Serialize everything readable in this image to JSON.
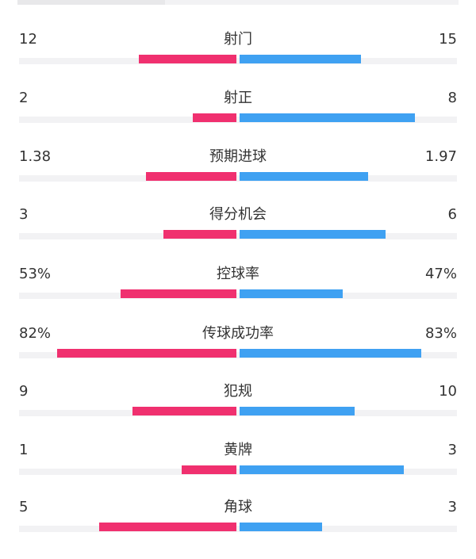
{
  "colors": {
    "home_bar": "#f0306f",
    "away_bar": "#3fa1f2",
    "track": "#f2f2f4",
    "text": "#333333"
  },
  "stats": [
    {
      "label": "射门",
      "home": "12",
      "away": "15",
      "home_share": 0.445,
      "away_share": 0.555
    },
    {
      "label": "射正",
      "home": "2",
      "away": "8",
      "home_share": 0.2,
      "away_share": 0.8
    },
    {
      "label": "预期进球",
      "home": "1.38",
      "away": "1.97",
      "home_share": 0.412,
      "away_share": 0.588
    },
    {
      "label": "得分机会",
      "home": "3",
      "away": "6",
      "home_share": 0.333,
      "away_share": 0.667
    },
    {
      "label": "控球率",
      "home": "53%",
      "away": "47%",
      "home_share": 0.53,
      "away_share": 0.47
    },
    {
      "label": "传球成功率",
      "home": "82%",
      "away": "83%",
      "home_share": 0.82,
      "away_share": 0.83
    },
    {
      "label": "犯规",
      "home": "9",
      "away": "10",
      "home_share": 0.474,
      "away_share": 0.526
    },
    {
      "label": "黄牌",
      "home": "1",
      "away": "3",
      "home_share": 0.25,
      "away_share": 0.75
    },
    {
      "label": "角球",
      "home": "5",
      "away": "3",
      "home_share": 0.625,
      "away_share": 0.375
    }
  ]
}
